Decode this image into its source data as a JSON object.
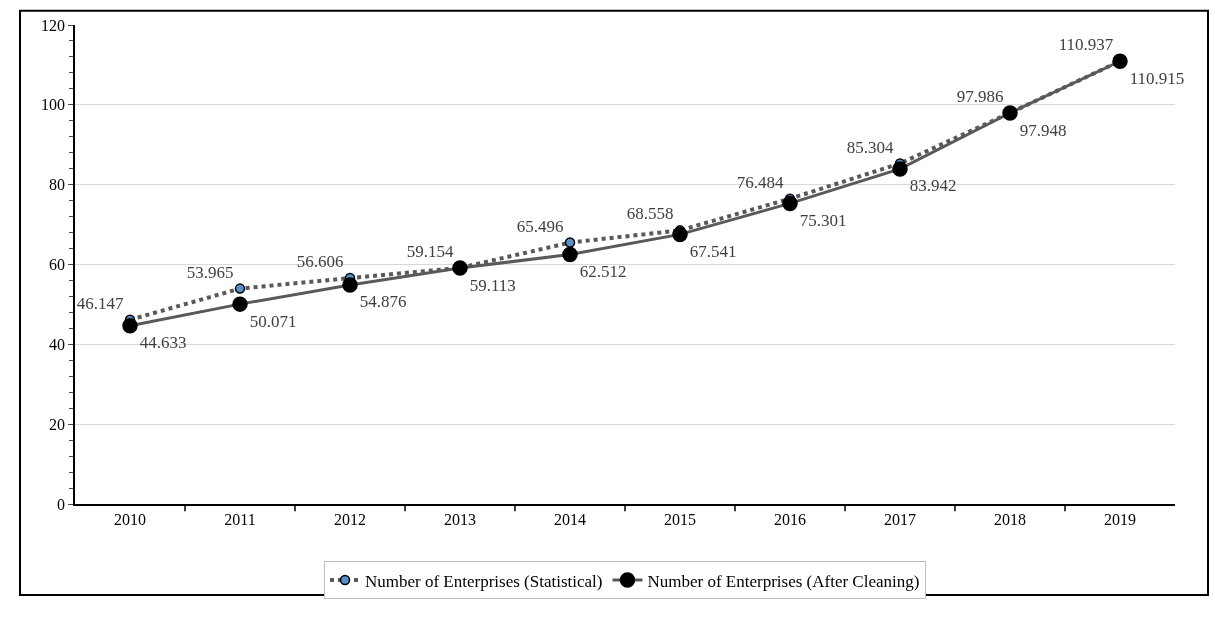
{
  "chart_data": {
    "type": "line",
    "categories": [
      "2010",
      "2011",
      "2012",
      "2013",
      "2014",
      "2015",
      "2016",
      "2017",
      "2018",
      "2019"
    ],
    "series": [
      {
        "name": "Number of Enterprises (Statistical)",
        "color": "#595959",
        "colors": [
          "#5b8fc9",
          "#5b8fc9",
          "#5b8fc9",
          "#5b8fc9",
          "#5b8fc9",
          "#5b8fc9",
          "#5b8fc9",
          "#5b8fc9",
          "#5b8fc9",
          "#5b8fc9"
        ],
        "line_style": "dotted",
        "values": [
          46.147,
          53.965,
          56.606,
          59.154,
          65.496,
          68.558,
          76.484,
          85.304,
          97.986,
          110.937
        ]
      },
      {
        "name": "Number of Enterprises (After Cleaning)",
        "color": "#595959",
        "colors": [
          "#000000",
          "#000000",
          "#000000",
          "#000000",
          "#000000",
          "#000000",
          "#000000",
          "#000000",
          "#000000",
          "#000000"
        ],
        "line_style": "solid",
        "values": [
          44.633,
          50.071,
          54.876,
          59.113,
          62.512,
          67.541,
          75.301,
          83.942,
          97.948,
          110.915
        ]
      }
    ],
    "ylim": [
      0,
      120
    ],
    "yticks": [
      0,
      20,
      40,
      60,
      80,
      100,
      120
    ],
    "grid": "y",
    "legend": "bottom",
    "marker": "circle",
    "data_labels": true
  }
}
